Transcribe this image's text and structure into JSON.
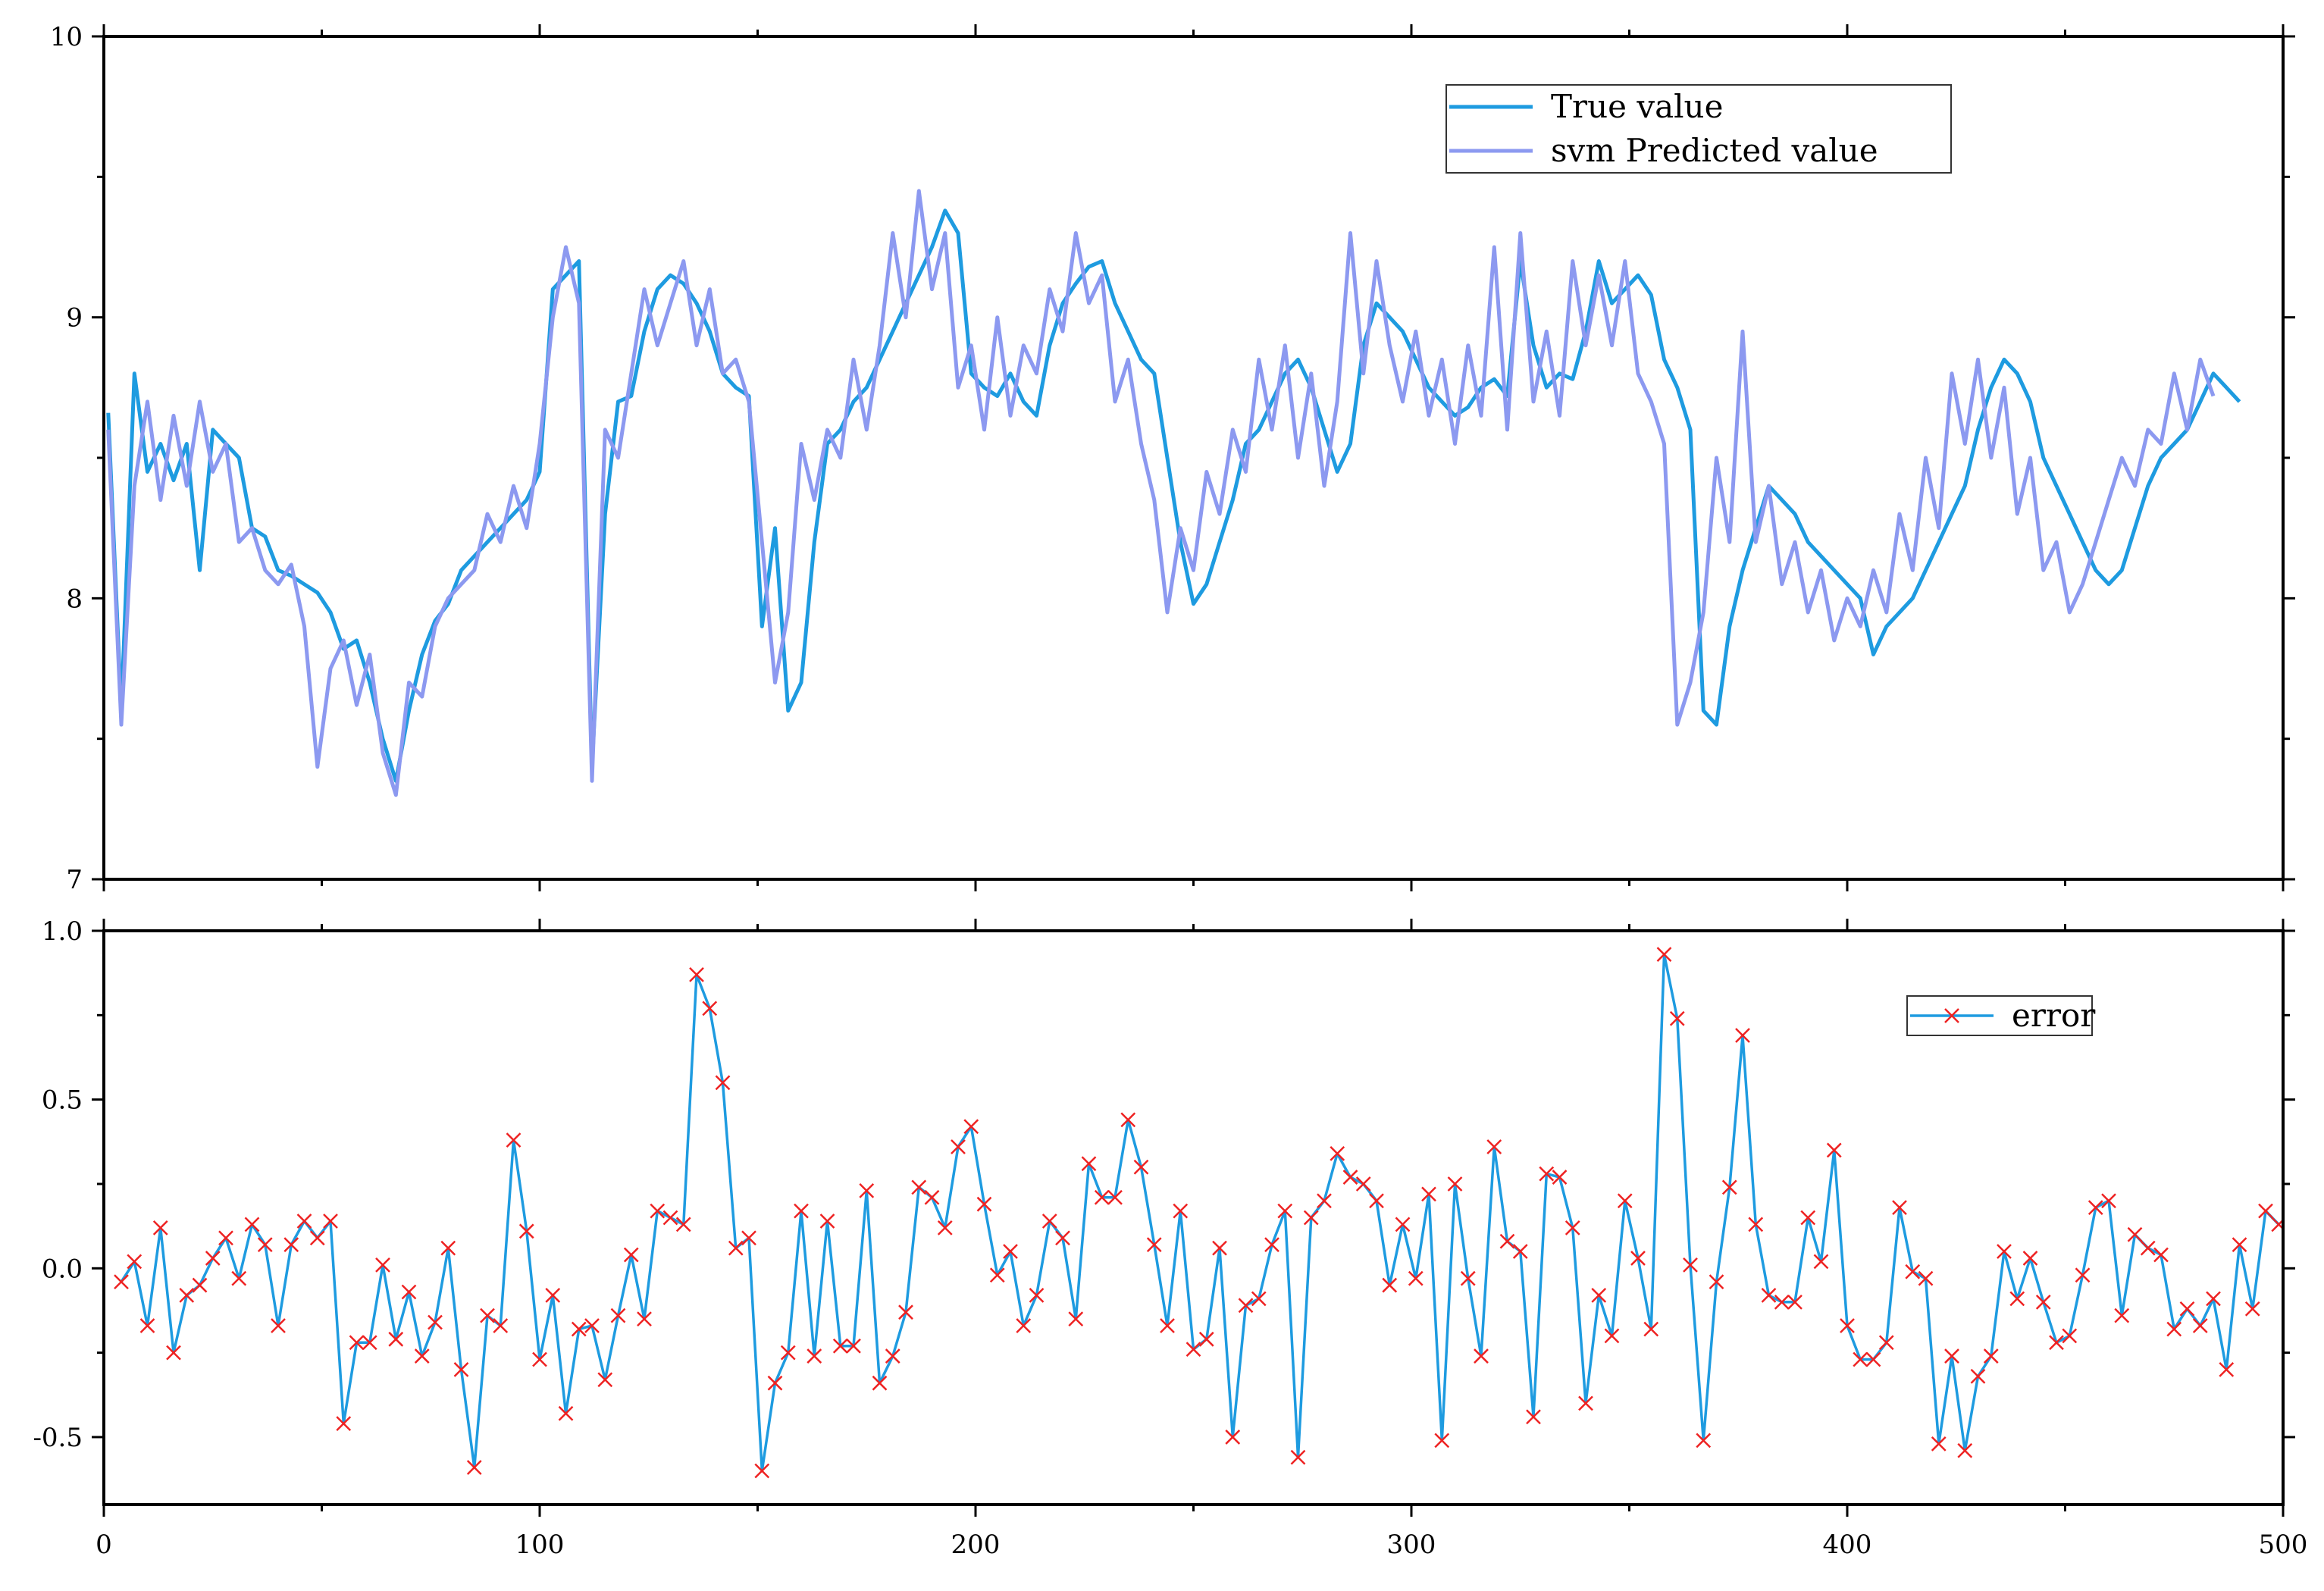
{
  "chart_data": [
    {
      "type": "line",
      "title": "",
      "xlabel": "",
      "ylabel": "",
      "xlim": [
        0,
        500
      ],
      "ylim": [
        7,
        10
      ],
      "xticks": [
        0,
        100,
        200,
        300,
        400,
        500
      ],
      "xtick_labels": [
        "",
        "",
        "",
        "",
        "",
        ""
      ],
      "yticks": [
        7,
        8,
        9,
        10
      ],
      "ytick_labels": [
        "7",
        "8",
        "9",
        "10"
      ],
      "grid": false,
      "legend_position": "top-right",
      "x_start": 1,
      "x_step": 3,
      "series": [
        {
          "name": "True value",
          "color": "#1e9be0",
          "values": [
            8.66,
            7.6,
            8.8,
            8.45,
            8.55,
            8.42,
            8.55,
            8.1,
            8.6,
            8.55,
            8.5,
            8.25,
            8.22,
            8.1,
            8.08,
            8.05,
            8.02,
            7.95,
            7.82,
            7.85,
            7.7,
            7.5,
            7.35,
            7.6,
            7.8,
            7.92,
            7.98,
            8.1,
            8.15,
            8.2,
            8.25,
            8.3,
            8.35,
            8.45,
            9.1,
            9.15,
            9.2,
            7.4,
            8.3,
            8.7,
            8.72,
            8.95,
            9.1,
            9.15,
            9.12,
            9.05,
            8.95,
            8.8,
            8.75,
            8.72,
            7.9,
            8.25,
            7.6,
            7.7,
            8.2,
            8.55,
            8.6,
            8.7,
            8.75,
            8.85,
            8.95,
            9.05,
            9.15,
            9.25,
            9.38,
            9.3,
            8.8,
            8.75,
            8.72,
            8.8,
            8.7,
            8.65,
            8.9,
            9.05,
            9.12,
            9.18,
            9.2,
            9.05,
            8.95,
            8.85,
            8.8,
            8.5,
            8.2,
            7.98,
            8.05,
            8.2,
            8.35,
            8.55,
            8.6,
            8.7,
            8.8,
            8.85,
            8.75,
            8.6,
            8.45,
            8.55,
            8.9,
            9.05,
            9.0,
            8.95,
            8.85,
            8.75,
            8.7,
            8.65,
            8.68,
            8.75,
            8.78,
            8.72,
            9.2,
            8.9,
            8.75,
            8.8,
            8.78,
            8.95,
            9.2,
            9.05,
            9.1,
            9.15,
            9.08,
            8.85,
            8.75,
            8.6,
            7.6,
            7.55,
            7.9,
            8.1,
            8.25,
            8.4,
            8.35,
            8.3,
            8.2,
            8.15,
            8.1,
            8.05,
            8.0,
            7.8,
            7.9,
            7.95,
            8.0,
            8.1,
            8.2,
            8.3,
            8.4,
            8.6,
            8.75,
            8.85,
            8.8,
            8.7,
            8.5,
            8.4,
            8.3,
            8.2,
            8.1,
            8.05,
            8.1,
            8.25,
            8.4,
            8.5,
            8.55,
            8.6,
            8.7,
            8.8,
            8.75,
            8.7
          ]
        },
        {
          "name": "svm Predicted value",
          "color": "#8c99f0",
          "values": [
            8.6,
            7.55,
            8.4,
            8.7,
            8.35,
            8.65,
            8.4,
            8.7,
            8.45,
            8.55,
            8.2,
            8.25,
            8.1,
            8.05,
            8.12,
            7.9,
            7.4,
            7.75,
            7.85,
            7.62,
            7.8,
            7.45,
            7.3,
            7.7,
            7.65,
            7.9,
            8.0,
            8.05,
            8.1,
            8.3,
            8.2,
            8.4,
            8.25,
            8.55,
            9.0,
            9.25,
            9.05,
            7.35,
            8.6,
            8.5,
            8.8,
            9.1,
            8.9,
            9.05,
            9.2,
            8.9,
            9.1,
            8.8,
            8.85,
            8.7,
            8.2,
            7.7,
            7.95,
            8.55,
            8.35,
            8.6,
            8.5,
            8.85,
            8.6,
            8.9,
            9.3,
            9.0,
            9.45,
            9.1,
            9.3,
            8.75,
            8.9,
            8.6,
            9.0,
            8.65,
            8.9,
            8.8,
            9.1,
            8.95,
            9.3,
            9.05,
            9.15,
            8.7,
            8.85,
            8.55,
            8.35,
            7.95,
            8.25,
            8.1,
            8.45,
            8.3,
            8.6,
            8.45,
            8.85,
            8.6,
            8.9,
            8.5,
            8.8,
            8.4,
            8.7,
            9.3,
            8.8,
            9.2,
            8.9,
            8.7,
            8.95,
            8.65,
            8.85,
            8.55,
            8.9,
            8.65,
            9.25,
            8.6,
            9.3,
            8.7,
            8.95,
            8.65,
            9.2,
            8.9,
            9.15,
            8.9,
            9.2,
            8.8,
            8.7,
            8.55,
            7.55,
            7.7,
            7.95,
            8.5,
            8.2,
            8.95,
            8.2,
            8.4,
            8.05,
            8.2,
            7.95,
            8.1,
            7.85,
            8.0,
            7.9,
            8.1,
            7.95,
            8.3,
            8.1,
            8.5,
            8.25,
            8.8,
            8.55,
            8.85,
            8.5,
            8.75,
            8.3,
            8.5,
            8.1,
            8.2,
            7.95,
            8.05,
            8.2,
            8.35,
            8.5,
            8.4,
            8.6,
            8.55,
            8.8,
            8.6,
            8.85,
            8.72
          ]
        }
      ]
    },
    {
      "type": "line",
      "title": "",
      "xlabel": "",
      "ylabel": "",
      "xlim": [
        0,
        500
      ],
      "ylim": [
        -0.7,
        1.0
      ],
      "xticks": [
        0,
        100,
        200,
        300,
        400,
        500
      ],
      "xtick_labels": [
        "0",
        "100",
        "200",
        "300",
        "400",
        "500"
      ],
      "yticks": [
        -0.5,
        0.0,
        0.5,
        1.0
      ],
      "ytick_labels": [
        "-0.5",
        "0.0",
        "0.5",
        "1.0"
      ],
      "grid": false,
      "legend_position": "top-right",
      "x_start": 4,
      "x_step": 3,
      "series": [
        {
          "name": "error",
          "color": "#1e9be0",
          "marker": "x",
          "marker_color": "#ee2222",
          "values": [
            -0.04,
            0.02,
            -0.17,
            0.12,
            -0.25,
            -0.08,
            -0.05,
            0.03,
            0.09,
            -0.03,
            0.13,
            0.07,
            -0.17,
            0.07,
            0.14,
            0.09,
            0.14,
            -0.46,
            -0.22,
            -0.22,
            0.01,
            -0.21,
            -0.07,
            -0.26,
            -0.16,
            0.06,
            -0.3,
            -0.59,
            -0.14,
            -0.17,
            0.38,
            0.11,
            -0.27,
            -0.08,
            -0.43,
            -0.18,
            -0.17,
            -0.33,
            -0.14,
            0.04,
            -0.15,
            0.17,
            0.15,
            0.13,
            0.87,
            0.77,
            0.55,
            0.06,
            0.09,
            -0.6,
            -0.34,
            -0.25,
            0.17,
            -0.26,
            0.14,
            -0.23,
            -0.23,
            0.23,
            -0.34,
            -0.26,
            -0.13,
            0.24,
            0.21,
            0.12,
            0.36,
            0.42,
            0.19,
            -0.02,
            0.05,
            -0.17,
            -0.08,
            0.14,
            0.09,
            -0.15,
            0.31,
            0.21,
            0.21,
            0.44,
            0.3,
            0.07,
            -0.17,
            0.17,
            -0.24,
            -0.21,
            0.06,
            -0.5,
            -0.11,
            -0.09,
            0.07,
            0.17,
            -0.56,
            0.15,
            0.2,
            0.34,
            0.27,
            0.25,
            0.2,
            -0.05,
            0.13,
            -0.03,
            0.22,
            -0.51,
            0.25,
            -0.03,
            -0.26,
            0.36,
            0.08,
            0.05,
            -0.44,
            0.28,
            0.27,
            0.12,
            -0.4,
            -0.08,
            -0.2,
            0.2,
            0.03,
            -0.18,
            0.93,
            0.74,
            0.01,
            -0.51,
            -0.04,
            0.24,
            0.69,
            0.13,
            -0.08,
            -0.1,
            -0.1,
            0.15,
            0.02,
            0.35,
            -0.17,
            -0.27,
            -0.27,
            -0.22,
            0.18,
            -0.01,
            -0.03,
            -0.52,
            -0.26,
            -0.54,
            -0.32,
            -0.26,
            0.05,
            -0.09,
            0.03,
            -0.1,
            -0.22,
            -0.2,
            -0.02,
            0.18,
            0.2,
            -0.14,
            0.1,
            0.06,
            0.04,
            -0.18,
            -0.12,
            -0.17,
            -0.09,
            -0.3,
            0.07,
            -0.12,
            0.17,
            0.13
          ]
        }
      ]
    }
  ]
}
